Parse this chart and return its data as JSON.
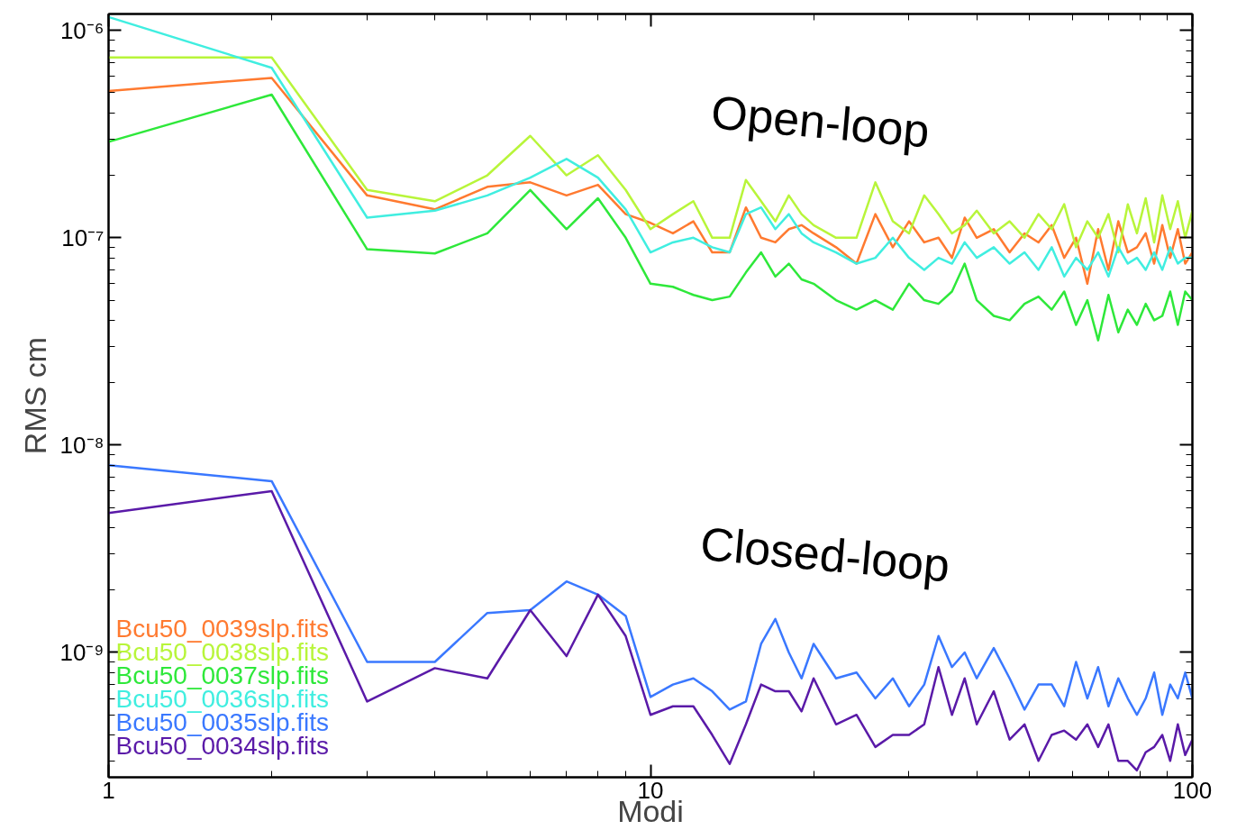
{
  "chart_data": {
    "type": "line",
    "xlabel": "Modi",
    "ylabel": "RMS cm",
    "log": "xy",
    "grid": false,
    "legend": "bottom left",
    "marker": "none",
    "line_style": "solid",
    "xlim": [
      1,
      100
    ],
    "xticks": [
      1,
      10,
      100
    ],
    "ylim": [
      2.5e-10,
      1.2e-06
    ],
    "yticks": [
      {
        "value": 1e-06,
        "label": "10⁻⁶"
      },
      {
        "value": 1e-07,
        "label": "10⁻⁷"
      },
      {
        "value": 1e-08,
        "label": "10⁻⁸"
      },
      {
        "value": 1e-09,
        "label": "10⁻⁹"
      }
    ],
    "x": [
      1,
      2,
      3,
      4,
      5,
      6,
      7,
      8,
      9,
      10,
      11,
      12,
      13,
      14,
      15,
      16,
      17,
      18,
      19,
      20,
      22,
      24,
      26,
      28,
      30,
      32,
      34,
      36,
      38,
      40,
      43,
      46,
      49,
      52,
      55,
      58,
      61,
      64,
      67,
      70,
      73,
      76,
      79,
      82,
      85,
      88,
      91,
      94,
      97,
      100
    ],
    "annotations": [
      "Open-loop",
      "Closed-loop"
    ],
    "series": [
      {
        "name": "Bcu50_0039slp.fits",
        "color": "#ff7a30",
        "values": [
          5.1e-07,
          5.9e-07,
          1.6e-07,
          1.37e-07,
          1.76e-07,
          1.85e-07,
          1.6e-07,
          1.8e-07,
          1.3e-07,
          1.18e-07,
          1.05e-07,
          1.2e-07,
          8.5e-08,
          8.5e-08,
          1.4e-07,
          1e-07,
          9.5e-08,
          1.1e-07,
          1.15e-07,
          1.05e-07,
          9e-08,
          7.5e-08,
          1.3e-07,
          9e-08,
          1.2e-07,
          9.5e-08,
          1e-07,
          8e-08,
          1.25e-07,
          1e-07,
          1.1e-07,
          8.5e-08,
          1.05e-07,
          9.5e-08,
          1.15e-07,
          8e-08,
          1e-07,
          6e-08,
          1.1e-07,
          7e-08,
          1.2e-07,
          8.5e-08,
          9e-08,
          1.05e-07,
          7.5e-08,
          1.15e-07,
          8e-08,
          1.1e-07,
          7.5e-08,
          8.5e-08
        ]
      },
      {
        "name": "Bcu50_0038slp.fits",
        "color": "#b8f53a",
        "values": [
          7.4e-07,
          7.4e-07,
          1.7e-07,
          1.5e-07,
          2e-07,
          3.1e-07,
          2e-07,
          2.5e-07,
          1.7e-07,
          1.1e-07,
          1.3e-07,
          1.5e-07,
          1e-07,
          1e-07,
          1.9e-07,
          1.5e-07,
          1.2e-07,
          1.6e-07,
          1.3e-07,
          1.15e-07,
          1e-07,
          1e-07,
          1.85e-07,
          1.2e-07,
          1.05e-07,
          1.6e-07,
          1.3e-07,
          1.05e-07,
          1.15e-07,
          1.35e-07,
          1.05e-07,
          1.2e-07,
          1e-07,
          1.3e-07,
          1.1e-07,
          1.45e-07,
          9e-08,
          1.2e-07,
          1e-07,
          1.3e-07,
          8.5e-08,
          1.45e-07,
          1.05e-07,
          1.55e-07,
          9.5e-08,
          1.6e-07,
          1.1e-07,
          1.5e-07,
          1e-07,
          1.35e-07
        ]
      },
      {
        "name": "Bcu50_0037slp.fits",
        "color": "#2ee83a",
        "values": [
          2.9e-07,
          4.9e-07,
          8.8e-08,
          8.4e-08,
          1.05e-07,
          1.7e-07,
          1.1e-07,
          1.55e-07,
          1e-07,
          6e-08,
          5.8e-08,
          5.3e-08,
          5e-08,
          5.2e-08,
          6.8e-08,
          8.5e-08,
          6.5e-08,
          7.5e-08,
          6.3e-08,
          6e-08,
          5e-08,
          4.5e-08,
          5e-08,
          4.5e-08,
          6e-08,
          5e-08,
          4.8e-08,
          5.5e-08,
          7.5e-08,
          5e-08,
          4.2e-08,
          4e-08,
          4.8e-08,
          5.2e-08,
          4.5e-08,
          5.5e-08,
          3.8e-08,
          5e-08,
          3.2e-08,
          5.3e-08,
          3.5e-08,
          4.5e-08,
          3.8e-08,
          4.8e-08,
          4e-08,
          4.2e-08,
          5.5e-08,
          3.8e-08,
          5.5e-08,
          5e-08
        ]
      },
      {
        "name": "Bcu50_0036slp.fits",
        "color": "#40eee0",
        "values": [
          1.16e-06,
          6.6e-07,
          1.25e-07,
          1.35e-07,
          1.6e-07,
          1.95e-07,
          2.4e-07,
          1.95e-07,
          1.37e-07,
          8.5e-08,
          9.5e-08,
          1e-07,
          9e-08,
          8.5e-08,
          1.3e-07,
          1.4e-07,
          1.1e-07,
          1.3e-07,
          1.05e-07,
          9.5e-08,
          8.5e-08,
          7.5e-08,
          8e-08,
          1e-07,
          8e-08,
          7e-08,
          8e-08,
          7.5e-08,
          9.5e-08,
          8e-08,
          9e-08,
          7.5e-08,
          8.5e-08,
          7e-08,
          9e-08,
          6.5e-08,
          8e-08,
          7e-08,
          8.5e-08,
          6.5e-08,
          9e-08,
          7.5e-08,
          8e-08,
          7e-08,
          8.5e-08,
          7e-08,
          9e-08,
          7.5e-08,
          8e-08,
          8e-08
        ]
      },
      {
        "name": "Bcu50_0035slp.fits",
        "color": "#3a78ff",
        "values": [
          8e-09,
          6.7e-09,
          9e-10,
          9e-10,
          1.55e-09,
          1.6e-09,
          2.2e-09,
          1.9e-09,
          1.5e-09,
          6.1e-10,
          7e-10,
          7.5e-10,
          6.5e-10,
          5.3e-10,
          5.8e-10,
          1.1e-09,
          1.45e-09,
          1e-09,
          7.5e-10,
          1.1e-09,
          7.5e-10,
          8e-10,
          6e-10,
          7.5e-10,
          5.5e-10,
          7e-10,
          1.2e-09,
          8.5e-10,
          1e-09,
          7.5e-10,
          1.05e-09,
          7.5e-10,
          5.3e-10,
          7e-10,
          7e-10,
          5.5e-10,
          9e-10,
          6e-10,
          8.5e-10,
          5.5e-10,
          7.5e-10,
          6e-10,
          5e-10,
          6e-10,
          8e-10,
          5e-10,
          7e-10,
          6e-10,
          8e-10,
          6e-10
        ]
      },
      {
        "name": "Bcu50_0034slp.fits",
        "color": "#5a1aa8",
        "values": [
          4.7e-09,
          6e-09,
          5.8e-10,
          8.4e-10,
          7.5e-10,
          1.6e-09,
          9.6e-10,
          1.9e-09,
          1.2e-09,
          5e-10,
          5.5e-10,
          5.5e-10,
          4e-10,
          2.9e-10,
          4.5e-10,
          7e-10,
          6.5e-10,
          6.5e-10,
          5.2e-10,
          7.5e-10,
          4.5e-10,
          5e-10,
          3.5e-10,
          4e-10,
          4e-10,
          4.5e-10,
          8.5e-10,
          5e-10,
          7.5e-10,
          4.5e-10,
          6.5e-10,
          3.8e-10,
          4.5e-10,
          3e-10,
          4e-10,
          4.2e-10,
          3.8e-10,
          4.5e-10,
          3.5e-10,
          4.5e-10,
          3e-10,
          3e-10,
          2.7e-10,
          3.3e-10,
          3.5e-10,
          4e-10,
          3e-10,
          4.5e-10,
          3.2e-10,
          3.8e-10
        ]
      }
    ]
  }
}
